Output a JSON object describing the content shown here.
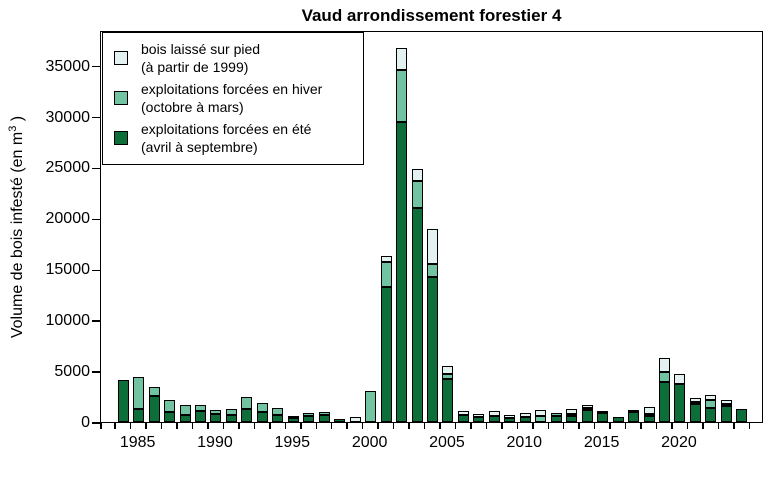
{
  "chart_data": {
    "type": "bar",
    "stacked": true,
    "title": "Vaud arrondissement forestier 4",
    "ylabel_prefix": "Volume de bois infesté (en m",
    "ylabel_sup": "3",
    "ylabel_suffix": " )",
    "xlabel": "",
    "ylim": [
      0,
      38500
    ],
    "grid": false,
    "legend_position": "top-left",
    "categories": [
      1983,
      1984,
      1985,
      1986,
      1987,
      1988,
      1989,
      1990,
      1991,
      1992,
      1993,
      1994,
      1995,
      1996,
      1997,
      1998,
      1999,
      2000,
      2001,
      2002,
      2003,
      2004,
      2005,
      2006,
      2007,
      2008,
      2009,
      2010,
      2011,
      2012,
      2013,
      2014,
      2015,
      2016,
      2017,
      2018,
      2019,
      2020,
      2021,
      2022,
      2023,
      2024
    ],
    "x_tick_labels": [
      1985,
      1990,
      1995,
      2000,
      2005,
      2010,
      2015,
      2020
    ],
    "y_ticks": [
      0,
      5000,
      10000,
      15000,
      20000,
      25000,
      30000,
      35000
    ],
    "series": [
      {
        "id": "ete",
        "name": "exploitations forcées en été (avril à septembre)",
        "color": "#0e6e39",
        "values": [
          0,
          4100,
          1300,
          2600,
          1000,
          700,
          1100,
          800,
          700,
          1300,
          1000,
          720,
          400,
          550,
          720,
          330,
          0,
          0,
          13300,
          29500,
          21000,
          14200,
          4200,
          650,
          450,
          550,
          390,
          490,
          0,
          590,
          590,
          1200,
          850,
          520,
          950,
          620,
          3900,
          3700,
          1750,
          1340,
          1600,
          1280
        ]
      },
      {
        "id": "hiver",
        "name": "exploitations forcées en hiver (octobre à mars)",
        "color": "#72c3a2",
        "values": [
          0,
          0,
          3100,
          900,
          1150,
          950,
          600,
          400,
          580,
          1200,
          930,
          650,
          220,
          300,
          260,
          0,
          0,
          3080,
          2450,
          5150,
          2700,
          1300,
          450,
          0,
          0,
          0,
          0,
          0,
          560,
          290,
          230,
          100,
          0,
          0,
          0,
          130,
          1000,
          0,
          200,
          750,
          100,
          0
        ]
      },
      {
        "id": "pied",
        "name": "bois laissé sur pied (à partir de 1999)",
        "color": "#e4f1f1",
        "values": [
          0,
          0,
          0,
          0,
          0,
          0,
          0,
          0,
          0,
          0,
          0,
          0,
          0,
          0,
          0,
          0,
          450,
          0,
          550,
          2150,
          1200,
          3450,
          800,
          430,
          300,
          450,
          260,
          390,
          590,
          0,
          490,
          330,
          200,
          0,
          230,
          690,
          1350,
          1000,
          370,
          490,
          400,
          0
        ]
      }
    ]
  },
  "legend": {
    "items": [
      {
        "line1": "bois laissé sur pied",
        "line2": "(à partir de 1999)",
        "color": "#e4f1f1"
      },
      {
        "line1": "exploitations forcées en hiver",
        "line2": "(octobre à mars)",
        "color": "#72c3a2"
      },
      {
        "line1": "exploitations forcées en été",
        "line2": "(avril à septembre)",
        "color": "#0e6e39"
      }
    ]
  }
}
